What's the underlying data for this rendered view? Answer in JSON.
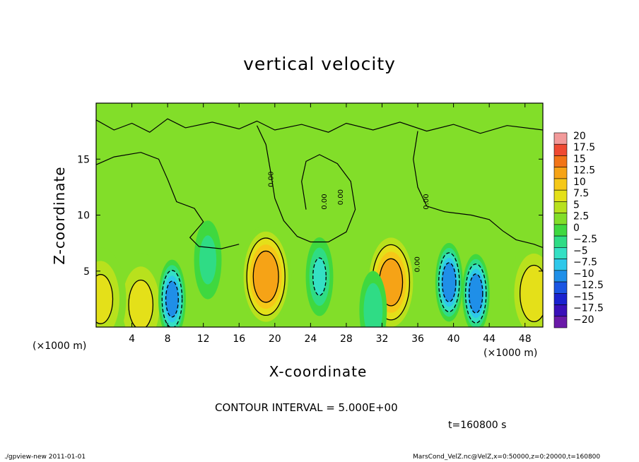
{
  "chart_data": {
    "type": "heatmap",
    "title": "vertical velocity",
    "xlabel": "X-coordinate",
    "ylabel": "Z-coordinate",
    "x_unit_left": "(×1000 m)",
    "x_unit_right": "(×1000 m)",
    "xlim": [
      0,
      50
    ],
    "ylim": [
      0,
      20
    ],
    "x_ticks": [
      4,
      8,
      12,
      16,
      20,
      24,
      28,
      32,
      36,
      40,
      44,
      48
    ],
    "x_tick_labels": [
      "4",
      "8",
      "12",
      "16",
      "20",
      "24",
      "28",
      "32",
      "36",
      "40",
      "44",
      "48"
    ],
    "y_ticks": [
      5,
      10,
      15
    ],
    "y_tick_labels": [
      "5",
      "10",
      "15"
    ],
    "contour_interval": 5,
    "contour_value_labels": [
      "0.00",
      "0.00",
      "0.00",
      "0.00",
      "0.00"
    ],
    "colorbar": {
      "levels": [
        20,
        17.5,
        15,
        12.5,
        10,
        7.5,
        5,
        2.5,
        0,
        -2.5,
        -5,
        -7.5,
        -10,
        -12.5,
        -15,
        -17.5,
        -20
      ],
      "labels": [
        "20",
        "17.5",
        "15",
        "12.5",
        "10",
        "7.5",
        "5",
        "2.5",
        "0",
        "−2.5",
        "−5",
        "−7.5",
        "−10",
        "−12.5",
        "−15",
        "−17.5",
        "−20"
      ],
      "colors": [
        "#f29a9a",
        "#ef4a32",
        "#f27417",
        "#f6a316",
        "#f5c818",
        "#e4e019",
        "#b8e11d",
        "#82de29",
        "#3fd83f",
        "#2fdc85",
        "#34e0c4",
        "#2ec8ea",
        "#1f8fe8",
        "#1a55e3",
        "#1a22cf",
        "#3a10b9",
        "#6a1aa8"
      ]
    },
    "features": [
      {
        "kind": "updraft",
        "x": 19,
        "z": 4.5,
        "peak": 12
      },
      {
        "kind": "updraft",
        "x": 33,
        "z": 4,
        "peak": 11
      },
      {
        "kind": "updraft",
        "x": 49,
        "z": 3,
        "peak": 6
      },
      {
        "kind": "updraft",
        "x": 5,
        "z": 2,
        "peak": 5
      },
      {
        "kind": "updraft",
        "x": 0.5,
        "z": 2.5,
        "peak": 5
      },
      {
        "kind": "downdraft",
        "x": 8.5,
        "z": 2.5,
        "peak": -11
      },
      {
        "kind": "downdraft",
        "x": 39.5,
        "z": 4,
        "peak": -12
      },
      {
        "kind": "downdraft",
        "x": 42.5,
        "z": 3,
        "peak": -12
      },
      {
        "kind": "downdraft",
        "x": 25,
        "z": 4.5,
        "peak": -5
      },
      {
        "kind": "downdraft",
        "x": 12.5,
        "z": 6,
        "peak": -3
      },
      {
        "kind": "downdraft",
        "x": 31,
        "z": 1.5,
        "peak": -4
      }
    ]
  },
  "labels": {
    "contour_note": "CONTOUR INTERVAL = 5.000E+00",
    "time": "t=160800 s",
    "footer_left": "./gpview-new  2011-01-01",
    "footer_right": "MarsCond_VelZ.nc@VelZ,x=0:50000,z=0:20000,t=160800"
  }
}
